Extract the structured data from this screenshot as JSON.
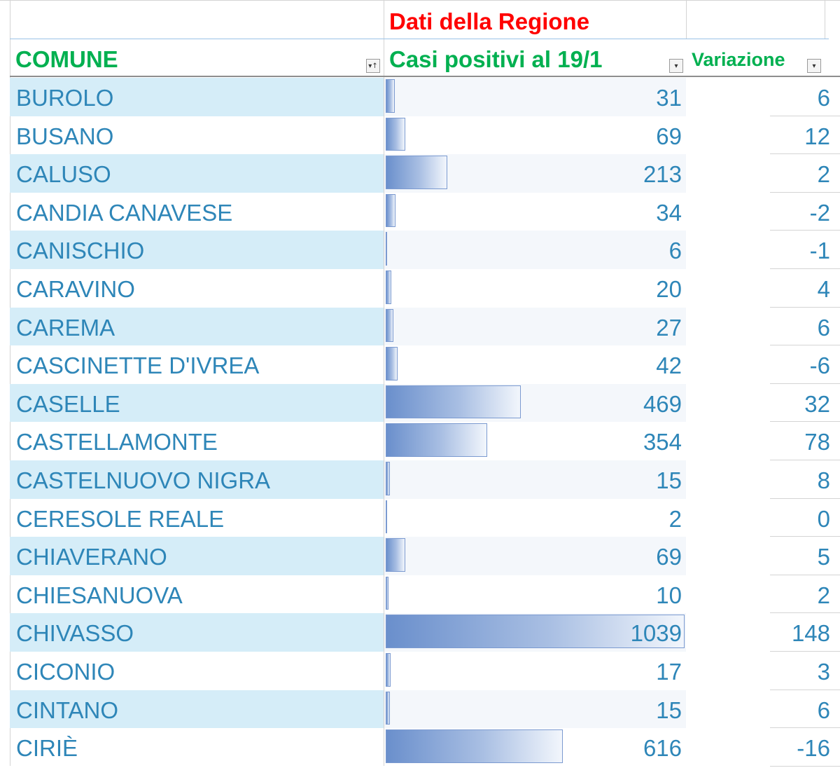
{
  "sheet": {
    "group_title": "Dati della Regione",
    "headers": {
      "comune": "COMUNE",
      "casi": "Casi positivi al 19/1",
      "variazione": "Variazione"
    },
    "filter_icons": {
      "comune": "sort-filter-icon",
      "casi": "dropdown-icon",
      "variazione": "dropdown-icon"
    },
    "rows": [
      {
        "comune": "BUROLO",
        "casi": "31",
        "variazione": "6"
      },
      {
        "comune": "BUSANO",
        "casi": "69",
        "variazione": "12"
      },
      {
        "comune": "CALUSO",
        "casi": "213",
        "variazione": "2"
      },
      {
        "comune": "CANDIA CANAVESE",
        "casi": "34",
        "variazione": "-2"
      },
      {
        "comune": "CANISCHIO",
        "casi": "6",
        "variazione": "-1"
      },
      {
        "comune": "CARAVINO",
        "casi": "20",
        "variazione": "4"
      },
      {
        "comune": "CAREMA",
        "casi": "27",
        "variazione": "6"
      },
      {
        "comune": "CASCINETTE D'IVREA",
        "casi": "42",
        "variazione": "-6"
      },
      {
        "comune": "CASELLE",
        "casi": "469",
        "variazione": "32"
      },
      {
        "comune": "CASTELLAMONTE",
        "casi": "354",
        "variazione": "78"
      },
      {
        "comune": "CASTELNUOVO NIGRA",
        "casi": "15",
        "variazione": "8"
      },
      {
        "comune": "CERESOLE REALE",
        "casi": "2",
        "variazione": "0"
      },
      {
        "comune": "CHIAVERANO",
        "casi": "69",
        "variazione": "5"
      },
      {
        "comune": "CHIESANUOVA",
        "casi": "10",
        "variazione": "2"
      },
      {
        "comune": "CHIVASSO",
        "casi": "1039",
        "variazione": "148"
      },
      {
        "comune": "CICONIO",
        "casi": "17",
        "variazione": "3"
      },
      {
        "comune": "CINTANO",
        "casi": "15",
        "variazione": "6"
      },
      {
        "comune": "CIRIÈ",
        "casi": "616",
        "variazione": "-16"
      }
    ],
    "colors": {
      "title": "#ff0000",
      "header": "#00b050",
      "value_text": "#2e86b8",
      "band": "#d5edf8",
      "databar": "#6a8fcc"
    }
  }
}
